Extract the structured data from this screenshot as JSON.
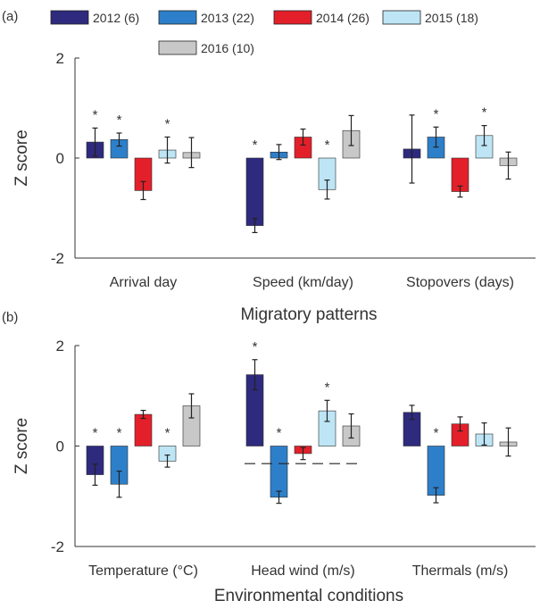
{
  "figure": {
    "legend": [
      {
        "label": "2012 (6)",
        "color": "#2e2a7e"
      },
      {
        "label": "2013 (22)",
        "color": "#2e7fc9"
      },
      {
        "label": "2014 (26)",
        "color": "#e3202a"
      },
      {
        "label": "2015 (18)",
        "color": "#bde5f5"
      },
      {
        "label": "2016 (10)",
        "color": "#c8c8c8"
      }
    ]
  },
  "chart_data": [
    {
      "type": "bar",
      "panel_label": "(a)",
      "xlabel": "Migratory patterns",
      "ylabel": "Z score",
      "ylim": [
        -2,
        2
      ],
      "yticks": [
        "2",
        "0",
        "-2"
      ],
      "categories": [
        "Arrival day",
        "Speed (km/day)",
        "Stopovers (days)"
      ],
      "series": [
        {
          "name": "2012 (6)",
          "values": [
            0.32,
            -1.35,
            0.18
          ],
          "errors": [
            0.28,
            0.14,
            0.68
          ],
          "significant": [
            true,
            true,
            false
          ]
        },
        {
          "name": "2013 (22)",
          "values": [
            0.37,
            0.12,
            0.42
          ],
          "errors": [
            0.13,
            0.15,
            0.2
          ],
          "significant": [
            true,
            false,
            true
          ]
        },
        {
          "name": "2014 (26)",
          "values": [
            -0.65,
            0.42,
            -0.67
          ],
          "errors": [
            0.18,
            0.16,
            0.11
          ],
          "significant": [
            false,
            false,
            false
          ]
        },
        {
          "name": "2015 (18)",
          "values": [
            0.16,
            -0.63,
            0.45
          ],
          "errors": [
            0.26,
            0.19,
            0.2
          ],
          "significant": [
            true,
            true,
            true
          ]
        },
        {
          "name": "2016 (10)",
          "values": [
            0.11,
            0.55,
            -0.15
          ],
          "errors": [
            0.3,
            0.3,
            0.27
          ],
          "significant": [
            false,
            false,
            false
          ]
        }
      ],
      "reference_lines": []
    },
    {
      "type": "bar",
      "panel_label": "(b)",
      "xlabel": "Environmental conditions",
      "ylabel": "Z score",
      "ylim": [
        -2,
        2
      ],
      "yticks": [
        "2",
        "0",
        "-2"
      ],
      "categories": [
        "Temperature (°C)",
        "Head wind (m/s)",
        "Thermals (m/s)"
      ],
      "series": [
        {
          "name": "2012 (6)",
          "values": [
            -0.57,
            1.42,
            0.67
          ],
          "errors": [
            0.21,
            0.3,
            0.14
          ],
          "significant": [
            true,
            true,
            false
          ]
        },
        {
          "name": "2013 (22)",
          "values": [
            -0.76,
            -1.02,
            -0.98
          ],
          "errors": [
            0.26,
            0.12,
            0.15
          ],
          "significant": [
            true,
            true,
            true
          ]
        },
        {
          "name": "2014 (26)",
          "values": [
            0.63,
            -0.15,
            0.44
          ],
          "errors": [
            0.08,
            0.12,
            0.14
          ],
          "significant": [
            false,
            false,
            false
          ]
        },
        {
          "name": "2015 (18)",
          "values": [
            -0.3,
            0.7,
            0.24
          ],
          "errors": [
            0.12,
            0.21,
            0.22
          ],
          "significant": [
            true,
            true,
            false
          ]
        },
        {
          "name": "2016 (10)",
          "values": [
            0.8,
            0.4,
            0.08
          ],
          "errors": [
            0.24,
            0.24,
            0.28
          ],
          "significant": [
            false,
            false,
            false
          ]
        }
      ],
      "reference_lines": [
        {
          "category": "Head wind (m/s)",
          "y": -0.35
        }
      ]
    }
  ]
}
